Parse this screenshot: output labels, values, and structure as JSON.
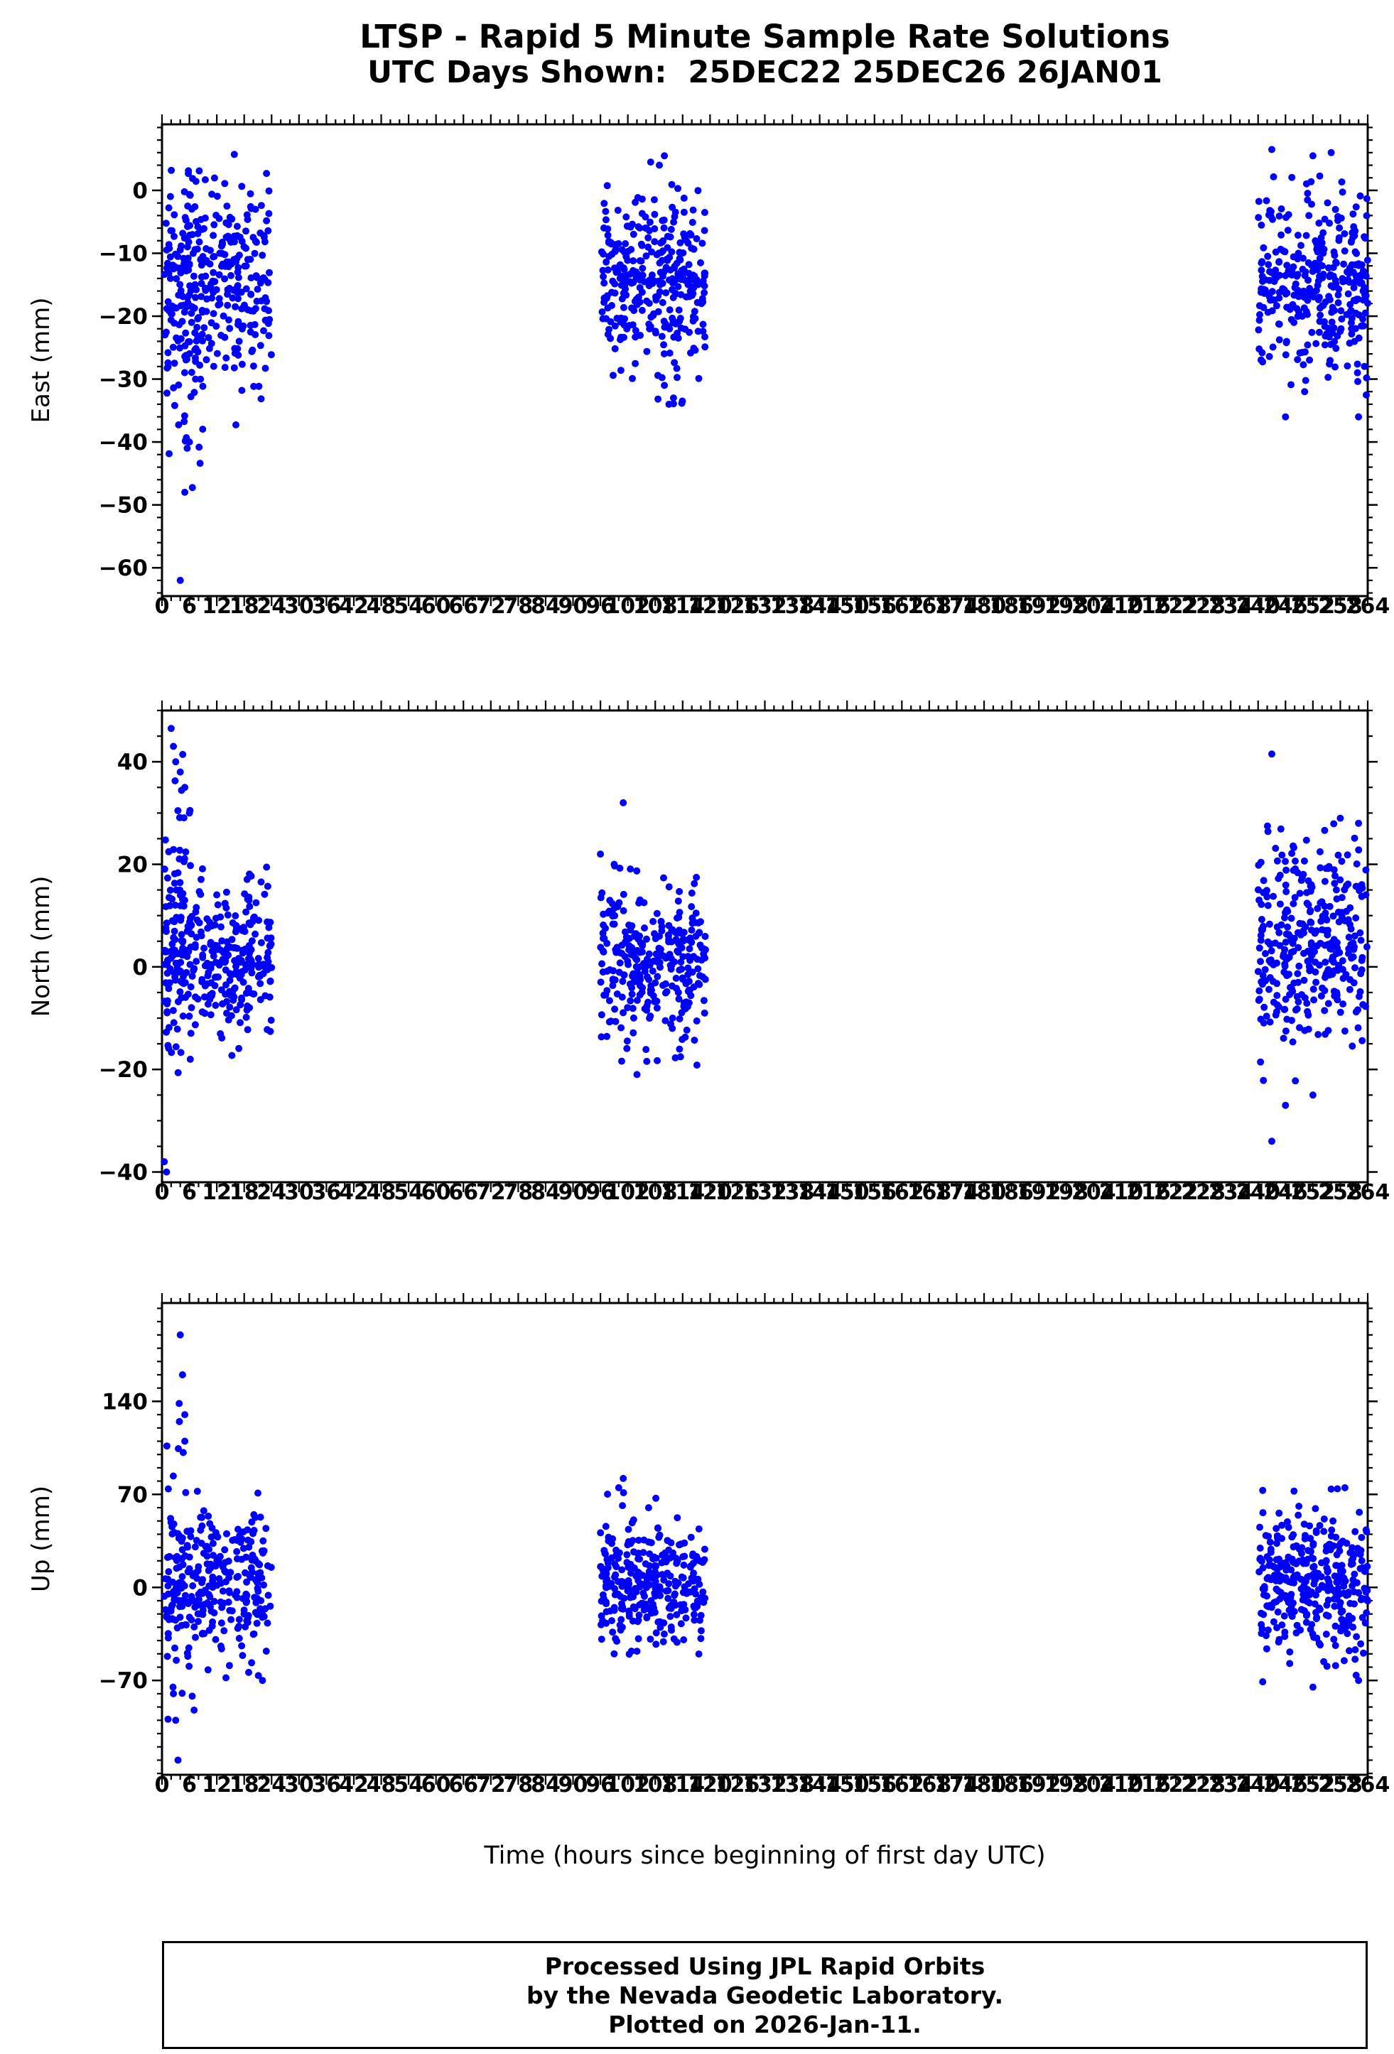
{
  "title": {
    "line1": "LTSP - Rapid 5 Minute Sample Rate Solutions",
    "line2": "UTC Days Shown:  25DEC22 25DEC26 26JAN01"
  },
  "x_axis": {
    "label": "Time (hours since beginning of first day UTC)",
    "min": 0,
    "max": 264,
    "major_tick": 6,
    "minor_tick": 2
  },
  "footer": {
    "line1": "Processed Using JPL Rapid Orbits",
    "line2": "by the Nevada Geodetic Laboratory.",
    "line3": "Plotted on 2026-Jan-11."
  },
  "style": {
    "point_color": "#0000ff",
    "axis_color": "#000000"
  },
  "chart_data": [
    {
      "type": "scatter",
      "id": "east",
      "ylabel": "East (mm)",
      "ylim": [
        -64.5,
        10.5
      ],
      "yticks": [
        0,
        -10,
        -20,
        -30,
        -40,
        -50,
        -60
      ],
      "y_minor": 2,
      "clusters": [
        {
          "x_range": [
            0.5,
            24
          ],
          "count": 300,
          "y_mean": -14,
          "y_std": 8,
          "y_clip": [
            -38,
            6
          ]
        },
        {
          "x_range": [
            1,
            9
          ],
          "count": 60,
          "y_mean": -20,
          "y_std": 10,
          "y_clip": [
            -48,
            5
          ]
        },
        {
          "x_range": [
            96,
            119
          ],
          "count": 300,
          "y_mean": -14,
          "y_std": 7,
          "y_clip": [
            -30,
            4
          ]
        },
        {
          "x_range": [
            108,
            114
          ],
          "count": 30,
          "y_mean": -20,
          "y_std": 8,
          "y_clip": [
            -34,
            5
          ]
        },
        {
          "x_range": [
            240,
            264
          ],
          "count": 330,
          "y_mean": -15,
          "y_std": 7,
          "y_clip": [
            -33,
            7
          ]
        }
      ],
      "outliers": [
        [
          4,
          -62
        ],
        [
          5,
          -48
        ],
        [
          5.5,
          -41
        ],
        [
          6,
          -40
        ],
        [
          110,
          5.5
        ],
        [
          107,
          4.5
        ],
        [
          111,
          -34
        ],
        [
          112,
          -33
        ],
        [
          110,
          -31
        ],
        [
          246,
          -36
        ],
        [
          262,
          -36
        ],
        [
          243,
          6.5
        ],
        [
          256,
          6
        ],
        [
          252,
          5.5
        ]
      ]
    },
    {
      "type": "scatter",
      "id": "north",
      "ylabel": "North (mm)",
      "ylim": [
        -42,
        50
      ],
      "yticks": [
        40,
        20,
        0,
        -20,
        -40
      ],
      "y_minor": 5,
      "clusters": [
        {
          "x_range": [
            0.5,
            24
          ],
          "count": 300,
          "y_mean": 2,
          "y_std": 8,
          "y_clip": [
            -18,
            20
          ]
        },
        {
          "x_range": [
            0.5,
            7
          ],
          "count": 60,
          "y_mean": 8,
          "y_std": 16,
          "y_clip": [
            -21,
            46
          ]
        },
        {
          "x_range": [
            96,
            119
          ],
          "count": 300,
          "y_mean": 1,
          "y_std": 8,
          "y_clip": [
            -20,
            22
          ]
        },
        {
          "x_range": [
            240,
            264
          ],
          "count": 330,
          "y_mean": 4,
          "y_std": 10,
          "y_clip": [
            -25,
            30
          ]
        }
      ],
      "outliers": [
        [
          0.5,
          -38
        ],
        [
          1,
          -40
        ],
        [
          2,
          46.5
        ],
        [
          2.5,
          43
        ],
        [
          3,
          40
        ],
        [
          4,
          38
        ],
        [
          5,
          35
        ],
        [
          6,
          30
        ],
        [
          101,
          32
        ],
        [
          104,
          -21
        ],
        [
          96,
          22
        ],
        [
          99,
          20
        ],
        [
          243,
          41.5
        ],
        [
          258,
          29
        ],
        [
          262,
          28
        ],
        [
          243,
          -34
        ],
        [
          246,
          -27
        ],
        [
          252,
          -25
        ]
      ]
    },
    {
      "type": "scatter",
      "id": "up",
      "ylabel": "Up (mm)",
      "ylim": [
        -141,
        214
      ],
      "yticks": [
        140,
        70,
        0,
        -70
      ],
      "y_minor": 10,
      "clusters": [
        {
          "x_range": [
            0.5,
            24
          ],
          "count": 280,
          "y_mean": 2,
          "y_std": 25,
          "y_clip": [
            -75,
            60
          ]
        },
        {
          "x_range": [
            1,
            8
          ],
          "count": 40,
          "y_mean": 20,
          "y_std": 70,
          "y_clip": [
            -130,
            190
          ]
        },
        {
          "x_range": [
            96,
            119
          ],
          "count": 300,
          "y_mean": 5,
          "y_std": 22,
          "y_clip": [
            -55,
            80
          ]
        },
        {
          "x_range": [
            240,
            264
          ],
          "count": 330,
          "y_mean": 2,
          "y_std": 28,
          "y_clip": [
            -76,
            76
          ]
        }
      ],
      "outliers": [
        [
          4,
          190
        ],
        [
          4.5,
          160
        ],
        [
          5,
          130
        ],
        [
          5,
          110
        ],
        [
          3,
          -100
        ],
        [
          3.5,
          -130
        ],
        [
          2.5,
          -80
        ],
        [
          21,
          71
        ],
        [
          22,
          -70
        ],
        [
          14,
          -68
        ],
        [
          101,
          82
        ],
        [
          100,
          75
        ],
        [
          99,
          -50
        ],
        [
          104,
          -48
        ],
        [
          241,
          73
        ],
        [
          256,
          74
        ],
        [
          259,
          75
        ],
        [
          241,
          -71
        ],
        [
          252,
          -75
        ],
        [
          262,
          -70
        ]
      ]
    }
  ]
}
